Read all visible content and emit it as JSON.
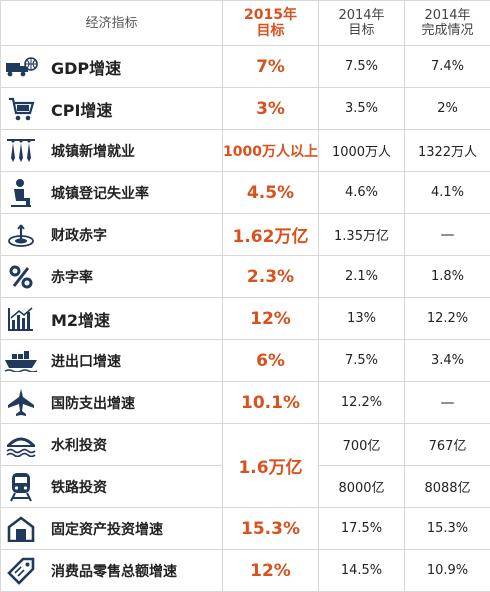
{
  "headers": {
    "indicator": "经济指标",
    "target_2015": "2015年\n目标",
    "target_2014": "2014年\n目标",
    "actual_2014": "2014年\n完成情况"
  },
  "rows": [
    {
      "icon": "truck-globe-icon",
      "label": "GDP增速",
      "t2015": "7%",
      "t2014": "7.5%",
      "a2014": "7.4%"
    },
    {
      "icon": "shopping-cart-icon",
      "label": "CPI增速",
      "t2015": "3%",
      "t2014": "3.5%",
      "a2014": "2%"
    },
    {
      "icon": "hanging-ties-icon",
      "label": "城镇新增就业",
      "t2015": "1000万人以上",
      "t2014": "1000万人",
      "a2014": "1322万人"
    },
    {
      "icon": "sitting-person-icon",
      "label": "城镇登记失业率",
      "t2015": "4.5%",
      "t2014": "4.6%",
      "a2014": "4.1%"
    },
    {
      "icon": "target-arrow-icon",
      "label": "财政赤字",
      "t2015": "1.62万亿",
      "t2014": "1.35万亿",
      "a2014": "—"
    },
    {
      "icon": "percent-icon",
      "label": "赤字率",
      "t2015": "2.3%",
      "t2014": "2.1%",
      "a2014": "1.8%"
    },
    {
      "icon": "bar-chart-icon",
      "label": "M2增速",
      "t2015": "12%",
      "t2014": "13%",
      "a2014": "12.2%"
    },
    {
      "icon": "cargo-ship-icon",
      "label": "进出口增速",
      "t2015": "6%",
      "t2014": "7.5%",
      "a2014": "3.4%"
    },
    {
      "icon": "fighter-jet-icon",
      "label": "国防支出增速",
      "t2015": "10.1%",
      "t2014": "12.2%",
      "a2014": "—"
    },
    {
      "icon": "water-bridge-icon",
      "label": "水利投资",
      "t2015": "1.6万亿",
      "t2014": "700亿",
      "a2014": "767亿"
    },
    {
      "icon": "train-icon",
      "label": "铁路投资",
      "t2015": "",
      "t2014": "8000亿",
      "a2014": "8088亿"
    },
    {
      "icon": "factory-icon",
      "label": "固定资产投资增速",
      "t2015": "15.3%",
      "t2014": "17.5%",
      "a2014": "15.3%"
    },
    {
      "icon": "price-tag-icon",
      "label": "消费品零售总额增速",
      "t2015": "12%",
      "t2014": "14.5%",
      "a2014": "10.9%"
    }
  ],
  "colors": {
    "accent": "#d9511c",
    "icon": "#1f3a5c",
    "border": "#d8d8d8"
  }
}
